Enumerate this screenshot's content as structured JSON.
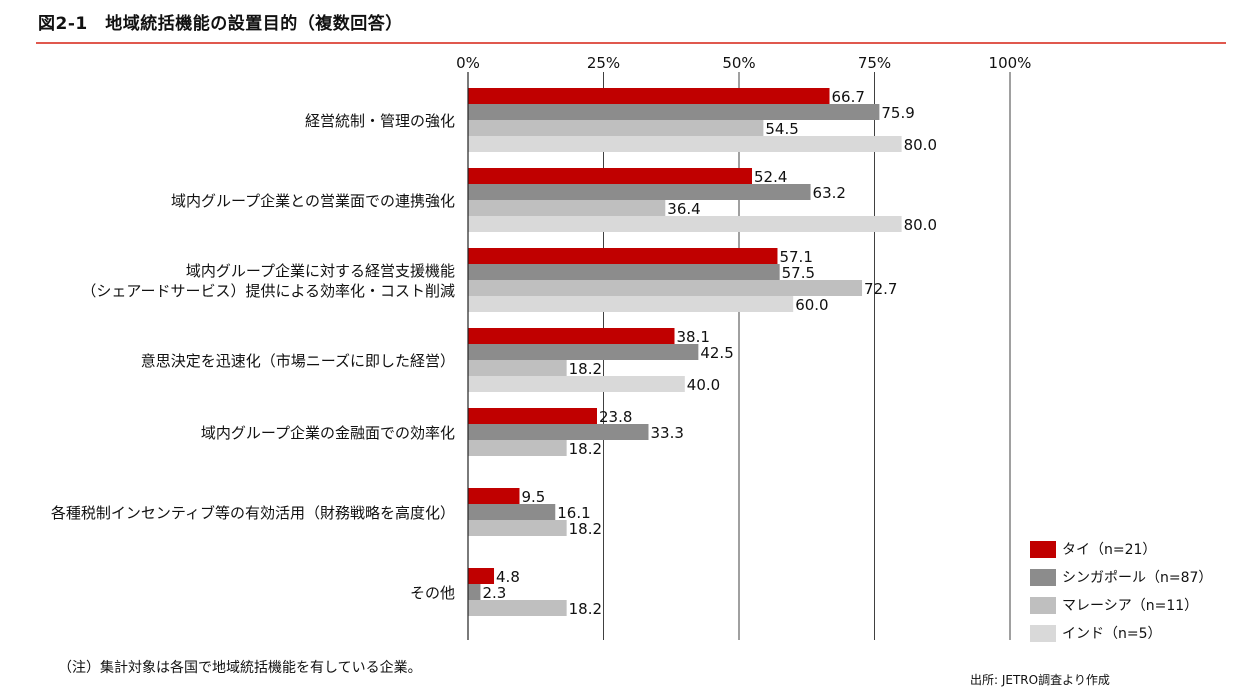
{
  "title": "図2-1　地域統括機能の設置目的（複数回答）",
  "note": "（注）集計対象は各国で地域統括機能を有している企業。",
  "source": "出所: JETRO調査より作成",
  "chart_data": {
    "type": "bar",
    "orientation": "horizontal",
    "xlim": [
      0,
      100
    ],
    "xticks": [
      "0%",
      "25%",
      "50%",
      "75%",
      "100%"
    ],
    "tick_values": [
      0,
      25,
      50,
      75,
      100
    ],
    "grid": true,
    "legend_position": "bottom-right",
    "categories": [
      "経営統制・管理の強化",
      "域内グループ企業との営業面での連携強化",
      "域内グループ企業に対する経営支援機能\n（シェアードサービス）提供による効率化・コスト削減",
      "意思決定を迅速化（市場ニーズに即した経営）",
      "域内グループ企業の金融面での効率化",
      "各種税制インセンティブ等の有効活用（財務戦略を高度化）",
      "その他"
    ],
    "series": [
      {
        "name": "タイ（n=21）",
        "color": "#c00000",
        "values": [
          66.7,
          52.4,
          57.1,
          38.1,
          23.8,
          9.5,
          4.8
        ],
        "labels": [
          "66.7",
          "52.4",
          "57.1",
          "38.1",
          "23.8",
          "9.5",
          "4.8"
        ]
      },
      {
        "name": "シンガポール（n=87）",
        "color": "#8c8c8c",
        "values": [
          75.9,
          63.2,
          57.5,
          42.5,
          33.3,
          16.1,
          2.3
        ],
        "labels": [
          "75.9",
          "63.2",
          "57.5",
          "42.5",
          "33.3",
          "16.1",
          "2.3"
        ]
      },
      {
        "name": "マレーシア（n=11）",
        "color": "#bfbfbf",
        "values": [
          54.5,
          36.4,
          72.7,
          18.2,
          18.2,
          18.2,
          18.2
        ],
        "labels": [
          "54.5",
          "36.4",
          "72.7",
          "18.2",
          "18.2",
          "18.2",
          "18.2"
        ]
      },
      {
        "name": "インド（n=5）",
        "color": "#d9d9d9",
        "values": [
          80.0,
          80.0,
          60.0,
          40.0,
          null,
          null,
          null
        ],
        "labels": [
          "80.0",
          "80.0",
          "60.0",
          "40.0",
          null,
          null,
          null
        ]
      }
    ]
  }
}
